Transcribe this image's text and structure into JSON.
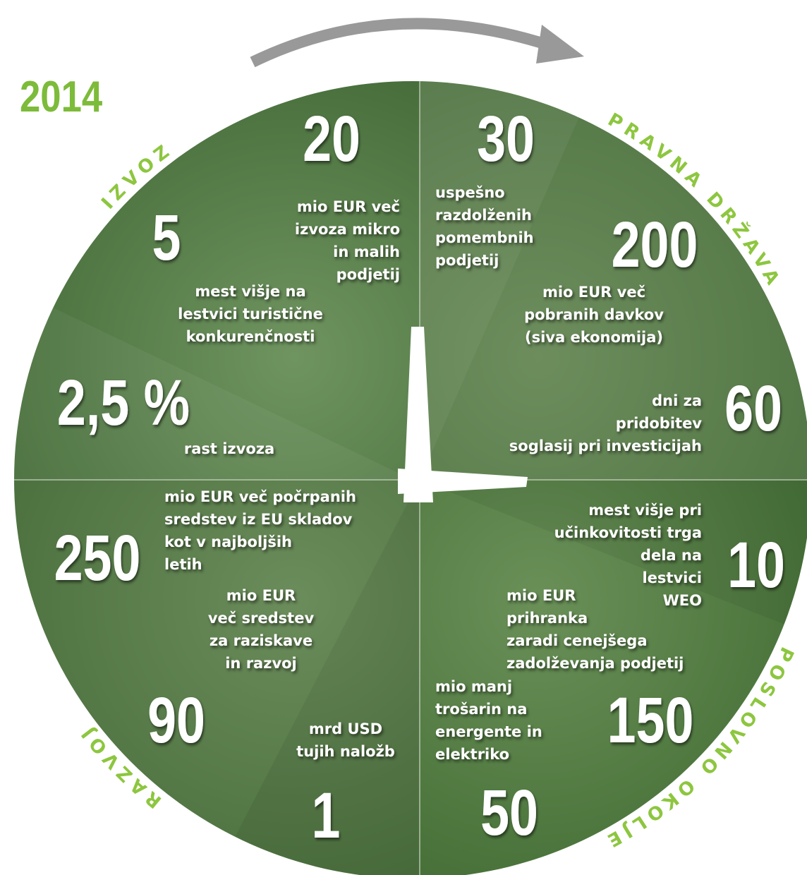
{
  "year": "2014",
  "sections": [
    {
      "label": "IZVOZ",
      "items": [
        {
          "number": "20",
          "text": [
            "mio EUR več",
            "izvoza mikro",
            "in malih",
            "podjetij"
          ]
        },
        {
          "number": "5",
          "text": [
            "mest višje na",
            "lestvici turistične",
            "konkurenčnosti"
          ]
        },
        {
          "number": "2,5 %",
          "text": [
            "rast izvoza"
          ]
        }
      ]
    },
    {
      "label": "PRAVNA DRŽAVA",
      "items": [
        {
          "number": "30",
          "text": [
            "uspešno",
            "razdolženih",
            "pomembnih",
            "podjetij"
          ]
        },
        {
          "number": "200",
          "text": [
            "mio EUR  več",
            "pobranih davkov",
            "(siva ekonomija)"
          ]
        },
        {
          "number": "60",
          "text": [
            "dni za",
            "pridobitev",
            "soglasij pri investicijah"
          ]
        }
      ]
    },
    {
      "label": "POSLOVNO OKOLJE",
      "items": [
        {
          "number": "10",
          "text": [
            "mest višje pri",
            "učinkovitosti trga",
            "dela na",
            "lestvici",
            "WEO"
          ]
        },
        {
          "number": "150",
          "text": [
            "mio EUR",
            "prihranka",
            "zaradi cenejšega",
            "zadolževanja podjetij"
          ]
        },
        {
          "number": "50",
          "text": [
            "mio manj",
            "trošarin na",
            "energente in",
            "elektriko"
          ]
        }
      ]
    },
    {
      "label": "RAZVOJ",
      "items": [
        {
          "number": "250",
          "text": [
            "mio EUR več počrpanih",
            "sredstev iz EU skladov",
            "kot v najboljših",
            "letih"
          ]
        },
        {
          "number": "90",
          "text": [
            "mio EUR",
            "več sredstev",
            "za raziskave",
            "in razvoj"
          ]
        },
        {
          "number": "1",
          "text": [
            "mrd USD",
            "tujih naložb"
          ]
        }
      ]
    }
  ]
}
